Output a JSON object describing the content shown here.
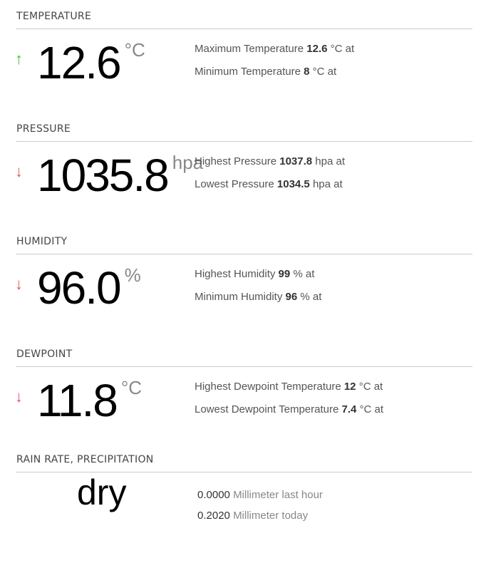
{
  "sections": [
    {
      "title": "TEMPERATURE",
      "trend": "up",
      "value": "12.6",
      "unit": "°C",
      "l1": {
        "label": "Maximum Temperature",
        "value": "12.6",
        "unit": "°C at"
      },
      "l2": {
        "label": "Minimum Temperature",
        "value": "8",
        "unit": "°C at"
      }
    },
    {
      "title": "PRESSURE",
      "trend": "down",
      "value": "1035.8",
      "unit": "hpa",
      "l1": {
        "label": "Highest Pressure",
        "value": "1037.8",
        "unit": "hpa at"
      },
      "l2": {
        "label": "Lowest Pressure",
        "value": "1034.5",
        "unit": "hpa at"
      }
    },
    {
      "title": "HUMIDITY",
      "trend": "down",
      "value": "96.0",
      "unit": "%",
      "l1": {
        "label": "Highest Humidity",
        "value": "99",
        "unit": "% at"
      },
      "l2": {
        "label": "Minimum Humidity",
        "value": "96",
        "unit": "% at"
      }
    },
    {
      "title": "DEWPOINT",
      "trend": "down",
      "value": "11.8",
      "unit": "°C",
      "l1": {
        "label": "Highest Dewpoint Temperature",
        "value": "12",
        "unit": "°C at"
      },
      "l2": {
        "label": "Lowest Dewpoint Temperature",
        "value": "7.4",
        "unit": "°C at"
      }
    }
  ],
  "rain": {
    "title": "RAIN RATE, PRECIPITATION",
    "status": "dry",
    "last_hour": {
      "value": "0.0000",
      "label": "Millimeter last hour"
    },
    "today": {
      "value": "0.2020",
      "label": "Millimeter today"
    }
  },
  "icons": {
    "up": "arrow-up-icon",
    "down": "arrow-down-icon"
  },
  "colors": {
    "up": "#3cbf3c",
    "down": "#e8535e"
  }
}
